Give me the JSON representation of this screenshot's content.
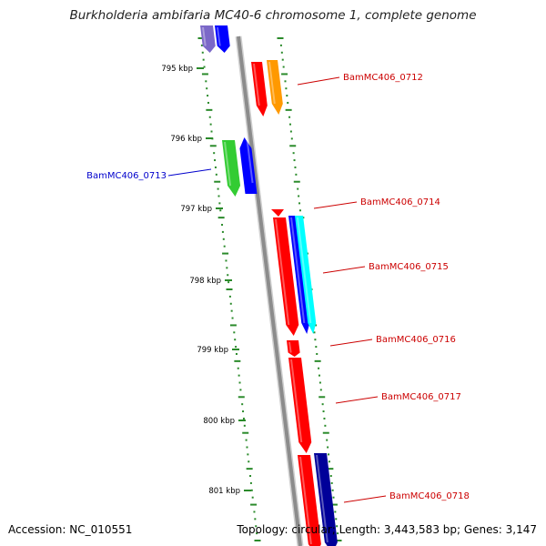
{
  "title": "Burkholderia ambifaria MC40-6 chromosome 1, complete genome",
  "footer": {
    "accession": "Accession: NC_010551",
    "summary": "Topology: circular; Length: 3,443,583 bp; Genes: 3,147"
  },
  "colors": {
    "backbone": "#8c8c8c",
    "tick": "#2a8a2a",
    "forward_label": "#cc0000",
    "reverse_label": "#0000cc",
    "red": "#ff0000",
    "orange": "#ff9900",
    "blue": "#0000ff",
    "green": "#33cc33",
    "cyan": "#00ffff",
    "navy": "#000099",
    "lavender": "#7b68c8"
  },
  "scale_labels": [
    "795 kbp",
    "796 kbp",
    "797 kbp",
    "798 kbp",
    "799 kbp",
    "800 kbp",
    "801 kbp"
  ],
  "gene_labels": [
    {
      "text": "BamMC406_0712",
      "strand": "forward"
    },
    {
      "text": "BamMC406_0713",
      "strand": "reverse"
    },
    {
      "text": "BamMC406_0714",
      "strand": "forward"
    },
    {
      "text": "BamMC406_0715",
      "strand": "forward"
    },
    {
      "text": "BamMC406_0716",
      "strand": "forward"
    },
    {
      "text": "BamMC406_0717",
      "strand": "forward"
    },
    {
      "text": "BamMC406_0718",
      "strand": "forward"
    }
  ]
}
